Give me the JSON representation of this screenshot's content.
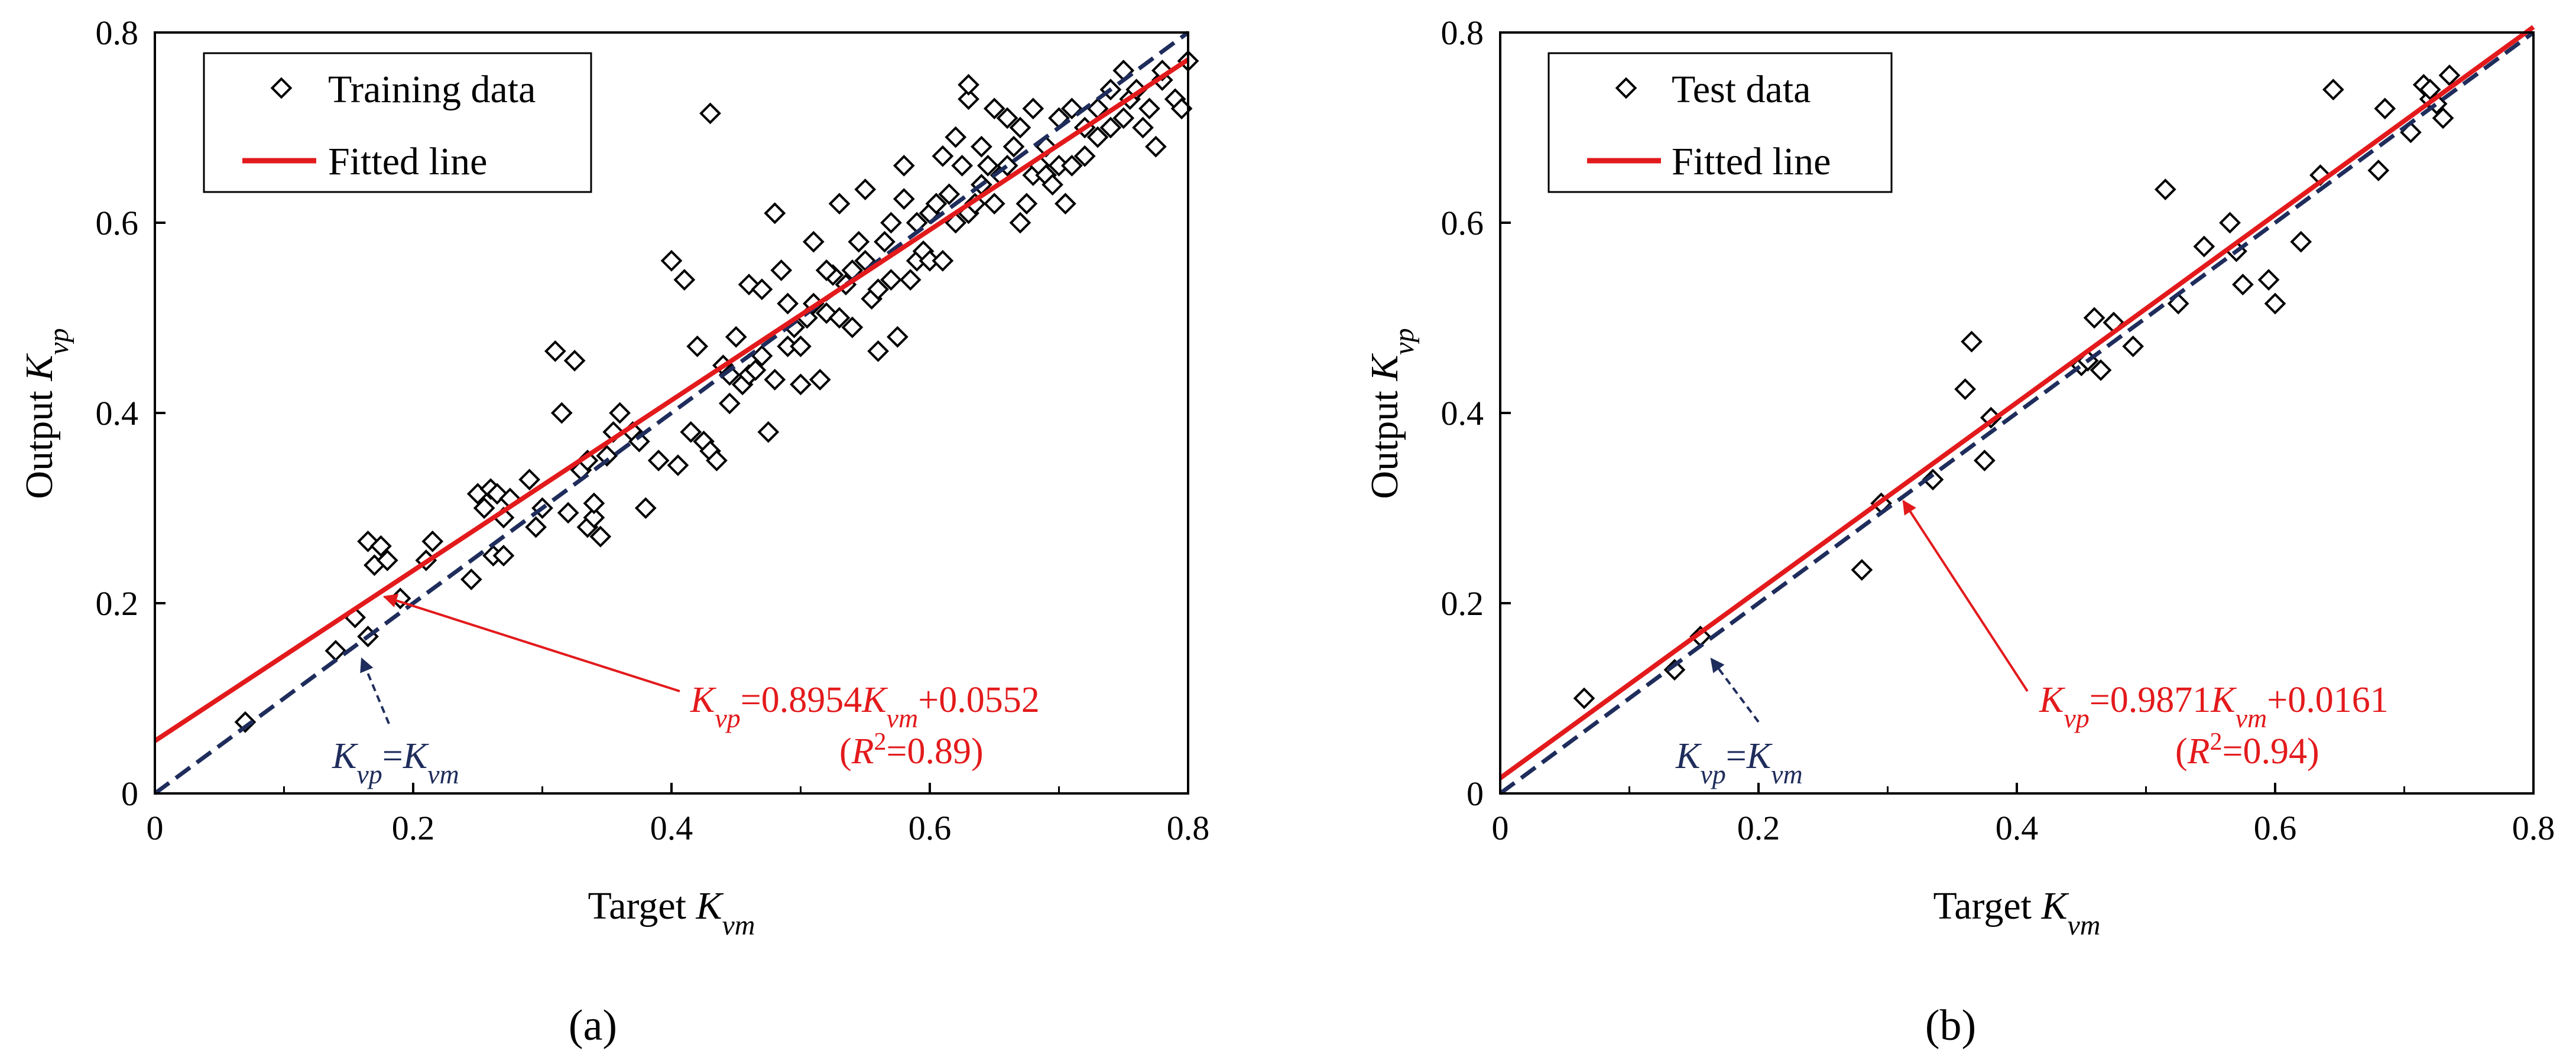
{
  "colors": {
    "fit_line": "#e31a1c",
    "identity_line": "#1f2d5c",
    "marker": "#000000",
    "fit_text": "#e31a1c",
    "identity_text": "#1f2d5c"
  },
  "chart_data": [
    {
      "type": "scatter",
      "panel_label": "(a)",
      "xlabel": {
        "main": "Target ",
        "var": "K",
        "sub": "vm"
      },
      "ylabel": {
        "main": "Output ",
        "var": "K",
        "sub": "vp"
      },
      "xlim": [
        0,
        0.8
      ],
      "ylim": [
        0,
        0.8
      ],
      "xticks": [
        "0",
        "0.2",
        "0.4",
        "0.6",
        "0.8"
      ],
      "yticks": [
        "0",
        "0.2",
        "0.4",
        "0.6",
        "0.8"
      ],
      "legend": {
        "position": "top-left",
        "markers_label": "Training data",
        "line_label": "Fitted line"
      },
      "fit": {
        "slope": 0.8954,
        "intercept": 0.0552
      },
      "fit_equation": {
        "var": "K",
        "sub_y": "vp",
        "eq_mid": "=0.8954",
        "sub_x": "vm",
        "eq_end": "+0.0552",
        "r2_open": "(",
        "r2_var": "R",
        "r2_sup": "2",
        "r2_close": "=0.89)"
      },
      "identity_label": {
        "var": "K",
        "sub_y": "vp",
        "eq": "=",
        "sub_x": "vm"
      },
      "points": {
        "x": [
          0.07,
          0.14,
          0.155,
          0.165,
          0.165,
          0.17,
          0.175,
          0.18,
          0.19,
          0.21,
          0.215,
          0.245,
          0.25,
          0.255,
          0.26,
          0.262,
          0.265,
          0.27,
          0.27,
          0.275,
          0.29,
          0.295,
          0.3,
          0.31,
          0.315,
          0.32,
          0.325,
          0.33,
          0.335,
          0.335,
          0.34,
          0.34,
          0.345,
          0.35,
          0.355,
          0.36,
          0.37,
          0.375,
          0.38,
          0.39,
          0.4,
          0.405,
          0.41,
          0.415,
          0.42,
          0.425,
          0.43,
          0.435,
          0.44,
          0.445,
          0.445,
          0.45,
          0.455,
          0.46,
          0.46,
          0.465,
          0.47,
          0.47,
          0.475,
          0.48,
          0.48,
          0.485,
          0.49,
          0.49,
          0.495,
          0.5,
          0.5,
          0.505,
          0.51,
          0.51,
          0.515,
          0.52,
          0.52,
          0.525,
          0.53,
          0.53,
          0.535,
          0.54,
          0.54,
          0.545,
          0.55,
          0.55,
          0.555,
          0.56,
          0.56,
          0.565,
          0.57,
          0.57,
          0.575,
          0.58,
          0.58,
          0.585,
          0.59,
          0.59,
          0.595,
          0.6,
          0.6,
          0.605,
          0.61,
          0.61,
          0.615,
          0.62,
          0.62,
          0.625,
          0.63,
          0.63,
          0.635,
          0.64,
          0.64,
          0.645,
          0.65,
          0.65,
          0.655,
          0.66,
          0.66,
          0.665,
          0.67,
          0.67,
          0.675,
          0.68,
          0.68,
          0.685,
          0.69,
          0.69,
          0.695,
          0.7,
          0.7,
          0.705,
          0.71,
          0.71,
          0.72,
          0.72,
          0.73,
          0.73,
          0.74,
          0.74,
          0.75,
          0.75,
          0.755,
          0.76,
          0.765,
          0.77,
          0.775,
          0.78,
          0.78,
          0.79,
          0.795,
          0.8,
          0.43,
          0.48,
          0.52,
          0.63
        ],
        "y": [
          0.075,
          0.15,
          0.185,
          0.165,
          0.265,
          0.24,
          0.26,
          0.245,
          0.205,
          0.245,
          0.265,
          0.225,
          0.315,
          0.3,
          0.32,
          0.25,
          0.315,
          0.29,
          0.25,
          0.31,
          0.33,
          0.28,
          0.3,
          0.465,
          0.4,
          0.295,
          0.455,
          0.34,
          0.28,
          0.35,
          0.29,
          0.305,
          0.27,
          0.355,
          0.38,
          0.4,
          0.38,
          0.37,
          0.3,
          0.35,
          0.56,
          0.345,
          0.54,
          0.38,
          0.47,
          0.37,
          0.36,
          0.35,
          0.45,
          0.44,
          0.41,
          0.48,
          0.43,
          0.44,
          0.535,
          0.445,
          0.53,
          0.46,
          0.38,
          0.435,
          0.61,
          0.55,
          0.47,
          0.515,
          0.49,
          0.47,
          0.43,
          0.5,
          0.515,
          0.58,
          0.435,
          0.505,
          0.55,
          0.545,
          0.5,
          0.62,
          0.535,
          0.49,
          0.55,
          0.58,
          0.56,
          0.635,
          0.52,
          0.53,
          0.465,
          0.58,
          0.54,
          0.6,
          0.48,
          0.66,
          0.625,
          0.54,
          0.6,
          0.56,
          0.57,
          0.61,
          0.56,
          0.62,
          0.56,
          0.67,
          0.63,
          0.6,
          0.69,
          0.66,
          0.61,
          0.73,
          0.62,
          0.64,
          0.68,
          0.66,
          0.62,
          0.72,
          0.65,
          0.66,
          0.71,
          0.68,
          0.6,
          0.7,
          0.62,
          0.65,
          0.72,
          0.66,
          0.68,
          0.65,
          0.64,
          0.71,
          0.66,
          0.62,
          0.72,
          0.66,
          0.67,
          0.7,
          0.72,
          0.69,
          0.7,
          0.74,
          0.71,
          0.76,
          0.73,
          0.74,
          0.7,
          0.72,
          0.68,
          0.75,
          0.76,
          0.73,
          0.72,
          0.77,
          0.715,
          0.61,
          0.55,
          0.745
        ]
      }
    },
    {
      "type": "scatter",
      "panel_label": "(b)",
      "xlabel": {
        "main": "Target ",
        "var": "K",
        "sub": "vm"
      },
      "ylabel": {
        "main": "Output ",
        "var": "K",
        "sub": "vp"
      },
      "xlim": [
        0,
        0.8
      ],
      "ylim": [
        0,
        0.8
      ],
      "xticks": [
        "0",
        "0.2",
        "0.4",
        "0.6",
        "0.8"
      ],
      "yticks": [
        "0",
        "0.2",
        "0.4",
        "0.6",
        "0.8"
      ],
      "legend": {
        "position": "top-left",
        "markers_label": "Test data",
        "line_label": "Fitted line"
      },
      "fit": {
        "slope": 0.9871,
        "intercept": 0.0161
      },
      "fit_equation": {
        "var": "K",
        "sub_y": "vp",
        "eq_mid": "=0.9871",
        "sub_x": "vm",
        "eq_end": "+0.0161",
        "r2_open": "(",
        "r2_var": "R",
        "r2_sup": "2",
        "r2_close": "=0.94)"
      },
      "identity_label": {
        "var": "K",
        "sub_y": "vp",
        "eq": "=",
        "sub_x": "vm"
      },
      "points": {
        "x": [
          0.065,
          0.135,
          0.155,
          0.28,
          0.295,
          0.335,
          0.36,
          0.365,
          0.375,
          0.38,
          0.45,
          0.455,
          0.46,
          0.465,
          0.475,
          0.49,
          0.515,
          0.525,
          0.545,
          0.565,
          0.57,
          0.575,
          0.595,
          0.6,
          0.62,
          0.635,
          0.645,
          0.68,
          0.685,
          0.705,
          0.715,
          0.72,
          0.72,
          0.725,
          0.73,
          0.735
        ],
        "y": [
          0.1,
          0.13,
          0.165,
          0.235,
          0.305,
          0.33,
          0.425,
          0.475,
          0.35,
          0.395,
          0.45,
          0.455,
          0.5,
          0.445,
          0.495,
          0.47,
          0.635,
          0.515,
          0.575,
          0.6,
          0.57,
          0.535,
          0.54,
          0.515,
          0.58,
          0.65,
          0.74,
          0.655,
          0.72,
          0.695,
          0.745,
          0.73,
          0.74,
          0.725,
          0.71,
          0.755
        ]
      }
    }
  ]
}
